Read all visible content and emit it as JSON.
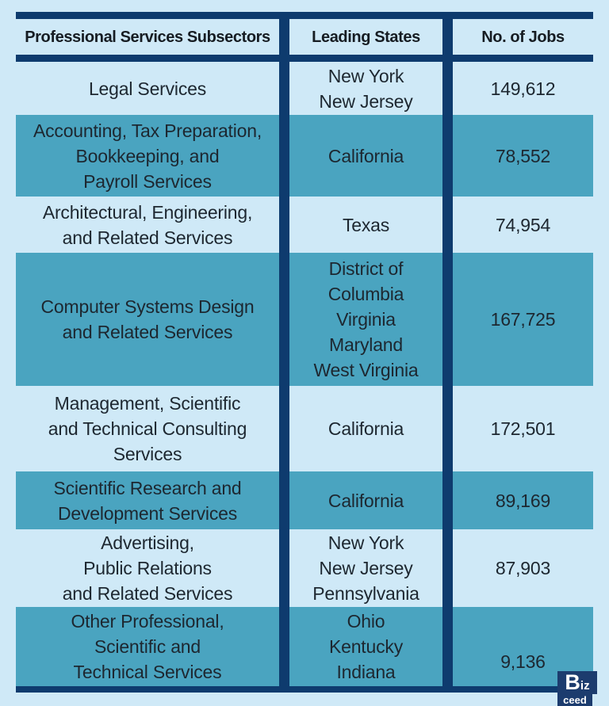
{
  "colors": {
    "page_background": "#cfe9f7",
    "light_row": "#cfe9f7",
    "teal_row": "#4aa4c0",
    "border_navy": "#0e3b6e",
    "text": "#1d2730"
  },
  "table": {
    "headers": [
      "Professional Services Subsectors",
      "Leading States",
      "No. of Jobs"
    ],
    "rows": [
      {
        "subsector": [
          "Legal Services"
        ],
        "states": [
          "New York",
          "New Jersey"
        ],
        "jobs": "149,612"
      },
      {
        "subsector": [
          "Accounting, Tax Preparation,",
          "Bookkeeping, and",
          "Payroll Services"
        ],
        "states": [
          "California"
        ],
        "jobs": "78,552"
      },
      {
        "subsector": [
          "Architectural, Engineering,",
          "and Related Services"
        ],
        "states": [
          "Texas"
        ],
        "jobs": "74,954"
      },
      {
        "subsector": [
          "Computer Systems Design",
          "and Related Services"
        ],
        "states": [
          "District of",
          "Columbia",
          "Virginia",
          "Maryland",
          "West Virginia"
        ],
        "jobs": "167,725"
      },
      {
        "subsector": [
          "Management, Scientific",
          "and Technical Consulting",
          "Services"
        ],
        "states": [
          "California"
        ],
        "jobs": "172,501"
      },
      {
        "subsector": [
          "Scientific Research and",
          "Development Services"
        ],
        "states": [
          "California"
        ],
        "jobs": "89,169"
      },
      {
        "subsector": [
          "Advertising,",
          "Public Relations",
          "and Related Services"
        ],
        "states": [
          "New York",
          "New Jersey",
          "Pennsylvania"
        ],
        "jobs": "87,903"
      },
      {
        "subsector": [
          "Other Professional,",
          "Scientific and",
          "Technical Services"
        ],
        "states": [
          "Ohio",
          "Kentucky",
          "Indiana"
        ],
        "jobs": "9,136"
      }
    ]
  },
  "chart_data": {
    "type": "table",
    "columns": [
      "Professional Services Subsectors",
      "Leading States",
      "No. of Jobs"
    ],
    "rows": [
      [
        "Legal Services",
        "New York; New Jersey",
        149612
      ],
      [
        "Accounting, Tax Preparation, Bookkeeping, and Payroll Services",
        "California",
        78552
      ],
      [
        "Architectural, Engineering, and Related Services",
        "Texas",
        74954
      ],
      [
        "Computer Systems Design and Related Services",
        "District of Columbia; Virginia; Maryland; West Virginia",
        167725
      ],
      [
        "Management, Scientific and Technical Consulting Services",
        "California",
        172501
      ],
      [
        "Scientific Research and Development Services",
        "California",
        89169
      ],
      [
        "Advertising, Public Relations and Related Services",
        "New York; New Jersey; Pennsylvania",
        87903
      ],
      [
        "Other Professional, Scientific and Technical Services",
        "Ohio; Kentucky; Indiana",
        9136
      ]
    ]
  },
  "logo": {
    "big": "B",
    "small": "iz",
    "bottom": "ceed"
  }
}
